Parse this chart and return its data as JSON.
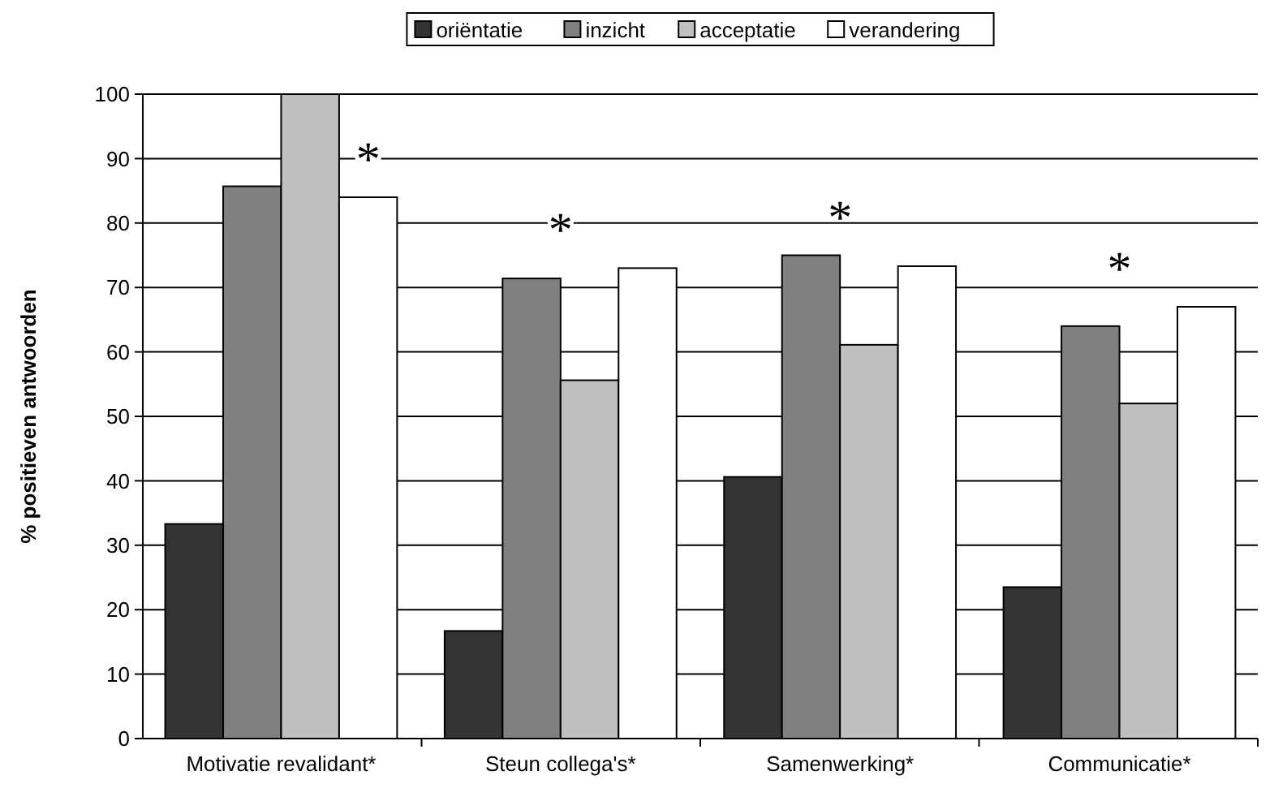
{
  "chart_data": {
    "type": "bar",
    "ylabel": "% positieven antwoorden",
    "categories": [
      "Motivatie revalidant*",
      "Steun collega's*",
      "Samenwerking*",
      "Communicatie*"
    ],
    "series": [
      {
        "name": "oriëntatie",
        "color": "#333333",
        "values": [
          33.3,
          16.7,
          40.6,
          23.5
        ]
      },
      {
        "name": "inzicht",
        "color": "#808080",
        "values": [
          85.7,
          71.4,
          75,
          64
        ]
      },
      {
        "name": "acceptatie",
        "color": "#c0c0c0",
        "values": [
          100,
          55.6,
          61.1,
          52
        ]
      },
      {
        "name": "verandering",
        "color": "#ffffff",
        "values": [
          84,
          73,
          73.3,
          67
        ]
      }
    ],
    "ylim": [
      0,
      100
    ],
    "yticks": [
      0,
      10,
      20,
      30,
      40,
      50,
      60,
      70,
      80,
      90,
      100
    ],
    "grid": "y",
    "legend": "top",
    "annotations": [
      "*",
      "*",
      "*",
      "*"
    ]
  }
}
